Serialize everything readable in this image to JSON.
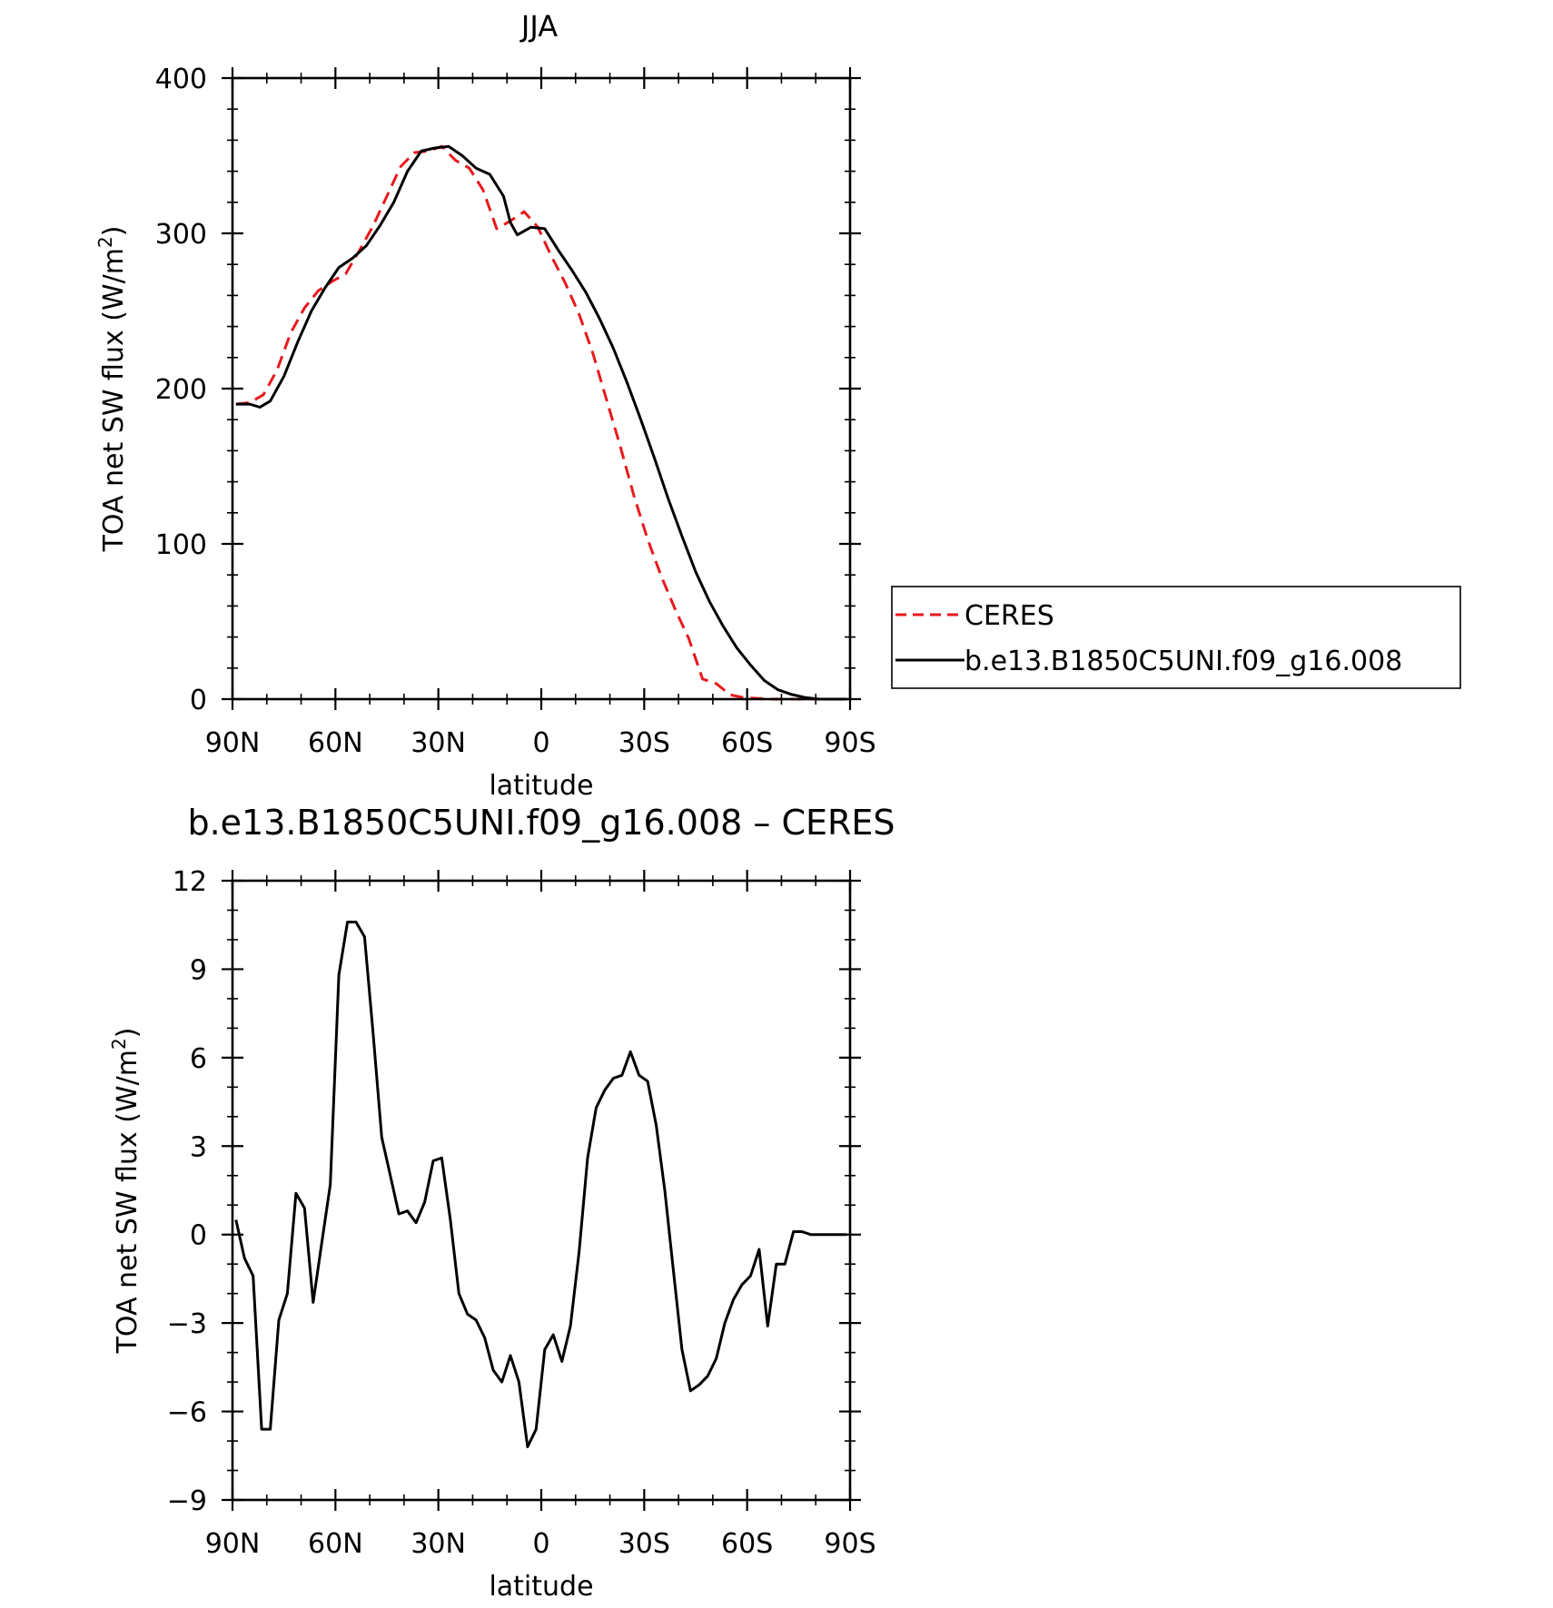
{
  "chart_data": [
    {
      "type": "line",
      "title": "JJA",
      "xlabel": "latitude",
      "ylabel": "TOA net SW flux (W/m²)",
      "ylabel_main": "TOA net SW flux (W/m",
      "ylabel_sup": "2",
      "ylabel_end": ")",
      "xlim": [
        90,
        -90
      ],
      "ylim": [
        0,
        400
      ],
      "xticks": [
        {
          "value": 90,
          "label": "90N"
        },
        {
          "value": 60,
          "label": "60N"
        },
        {
          "value": 30,
          "label": "30N"
        },
        {
          "value": 0,
          "label": "0"
        },
        {
          "value": -30,
          "label": "30S"
        },
        {
          "value": -60,
          "label": "60S"
        },
        {
          "value": -90,
          "label": "90S"
        }
      ],
      "yticks": [
        {
          "value": 0,
          "label": "0"
        },
        {
          "value": 100,
          "label": "100"
        },
        {
          "value": 200,
          "label": "200"
        },
        {
          "value": 300,
          "label": "300"
        },
        {
          "value": 400,
          "label": "400"
        }
      ],
      "legend": {
        "position": "right",
        "entries": [
          "CERES",
          "b.e13.B1850C5UNI.f09_g16.008"
        ]
      },
      "series": [
        {
          "name": "CERES",
          "color": "#e8191c",
          "dash": "dashed",
          "x": [
            89,
            85,
            81,
            77,
            73,
            69,
            65,
            61,
            57,
            53,
            49,
            45,
            41,
            37,
            33,
            29,
            25,
            21,
            17,
            13,
            9,
            5,
            1,
            -3,
            -7,
            -11,
            -15,
            -19,
            -23,
            -27,
            -31,
            -35,
            -39,
            -43,
            -47,
            -51,
            -55,
            -59,
            -63,
            -67,
            -71,
            -75,
            -79,
            -83,
            -87,
            -89
          ],
          "y": [
            190,
            191,
            196,
            212,
            236,
            252,
            263,
            269,
            274,
            289,
            305,
            324,
            343,
            352,
            353,
            356,
            347,
            342,
            328,
            303,
            308,
            314,
            304,
            285,
            268,
            248,
            223,
            193,
            163,
            131,
            103,
            79,
            58,
            39,
            13,
            10,
            2.8,
            1,
            0.5,
            0,
            0,
            0,
            0,
            0,
            0,
            0
          ]
        },
        {
          "name": "b.e13.B1850C5UNI.f09_g16.008",
          "color": "#000000",
          "dash": "solid",
          "x": [
            89,
            85,
            82,
            79,
            75,
            71,
            67,
            63,
            59,
            55,
            51,
            47,
            43,
            39,
            35,
            31,
            27,
            23,
            19,
            15,
            11,
            9,
            7,
            3,
            -1,
            -5,
            -9,
            -13,
            -17,
            -21,
            -25,
            -29,
            -33,
            -37,
            -41,
            -45,
            -49,
            -53,
            -57,
            -61,
            -65,
            -69,
            -73,
            -77,
            -81,
            -85,
            -89
          ],
          "y": [
            190,
            190,
            188,
            192,
            208,
            230,
            250,
            265,
            278,
            284,
            292,
            305,
            320,
            340,
            353,
            355,
            356,
            350,
            342,
            338,
            324,
            307,
            299,
            304,
            303,
            289,
            276,
            262,
            245,
            226,
            204,
            180,
            155,
            129,
            105,
            82,
            63,
            47,
            33,
            22,
            12,
            6,
            3,
            1,
            0,
            0,
            0
          ]
        }
      ]
    },
    {
      "type": "line",
      "title": "b.e13.B1850C5UNI.f09_g16.008 – CERES",
      "xlabel": "latitude",
      "ylabel": "TOA net SW flux (W/m²)",
      "ylabel_main": "TOA net SW flux (W/m",
      "ylabel_sup": "2",
      "ylabel_end": ")",
      "xlim": [
        90,
        -90
      ],
      "ylim": [
        -9,
        12
      ],
      "xticks": [
        {
          "value": 90,
          "label": "90N"
        },
        {
          "value": 60,
          "label": "60N"
        },
        {
          "value": 30,
          "label": "30N"
        },
        {
          "value": 0,
          "label": "0"
        },
        {
          "value": -30,
          "label": "30S"
        },
        {
          "value": -60,
          "label": "60S"
        },
        {
          "value": -90,
          "label": "90S"
        }
      ],
      "yticks": [
        {
          "value": -9,
          "label": "−9"
        },
        {
          "value": -6,
          "label": "−6"
        },
        {
          "value": -3,
          "label": "−3"
        },
        {
          "value": 0,
          "label": "0"
        },
        {
          "value": 3,
          "label": "3"
        },
        {
          "value": 6,
          "label": "6"
        },
        {
          "value": 9,
          "label": "9"
        },
        {
          "value": 12,
          "label": "12"
        }
      ],
      "series": [
        {
          "color": "#000000",
          "dash": "solid",
          "x": [
            89,
            86.5,
            84,
            81.5,
            79,
            76.5,
            74,
            71.5,
            69,
            66.5,
            64,
            61.5,
            59,
            56.5,
            54,
            51.5,
            49,
            46.5,
            44,
            41.5,
            39,
            36.5,
            34,
            31.5,
            29,
            26.5,
            24,
            21.5,
            19,
            16.5,
            14,
            11.5,
            9,
            6.5,
            4,
            1.5,
            -1,
            -3.5,
            -6,
            -8.5,
            -11,
            -13.5,
            -16,
            -18.5,
            -21,
            -23.5,
            -26,
            -28.5,
            -31,
            -33.5,
            -36,
            -38.5,
            -41,
            -43.5,
            -46,
            -48.5,
            -51,
            -53.5,
            -56,
            -58.5,
            -61,
            -63.5,
            -66,
            -68.5,
            -71,
            -73.5,
            -76,
            -78.5,
            -81,
            -83.5,
            -86,
            -89
          ],
          "y": [
            0.5,
            -0.8,
            -1.4,
            -6.6,
            -6.6,
            -2.9,
            -2,
            1.4,
            0.9,
            -2.3,
            -0.3,
            1.7,
            8.8,
            10.6,
            10.6,
            10.1,
            6.8,
            3.3,
            2,
            0.7,
            0.8,
            0.4,
            1.1,
            2.5,
            2.6,
            0.5,
            -2,
            -2.7,
            -2.9,
            -3.5,
            -4.6,
            -5,
            -4.1,
            -5,
            -7.2,
            -6.6,
            -3.9,
            -3.4,
            -4.3,
            -3.1,
            -0.6,
            2.6,
            4.3,
            4.9,
            5.3,
            5.4,
            6.2,
            5.4,
            5.2,
            3.7,
            1.5,
            -1.2,
            -3.9,
            -5.3,
            -5.1,
            -4.8,
            -4.2,
            -3,
            -2.2,
            -1.7,
            -1.4,
            -0.5,
            -3.1,
            -1,
            -1,
            0.1,
            0.1,
            0,
            0,
            0,
            0,
            0
          ]
        }
      ]
    }
  ]
}
